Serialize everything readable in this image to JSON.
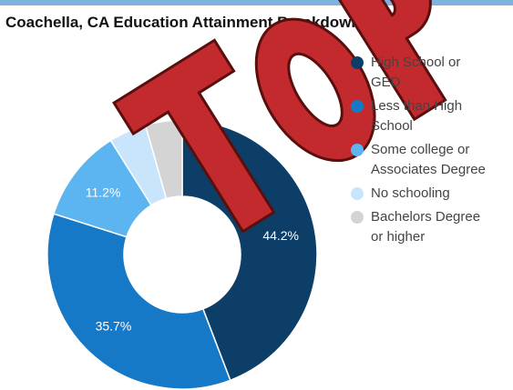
{
  "chart_data": {
    "type": "donut",
    "title": "Coachella, CA Education Attainment Breakdown",
    "categories": [
      "High School or GED",
      "Less than High School",
      "Some college or Associates Degree",
      "No schooling",
      "Bachelors Degree or higher"
    ],
    "values": [
      44.2,
      35.7,
      11.2,
      4.5,
      4.4
    ],
    "value_labels": [
      "44.2%",
      "35.7%",
      "11.2%",
      null,
      null
    ],
    "colors": [
      "#0c3e68",
      "#1679c8",
      "#5cb4f0",
      "#c8e5fb",
      "#d4d4d4"
    ],
    "legend": "right"
  }
}
